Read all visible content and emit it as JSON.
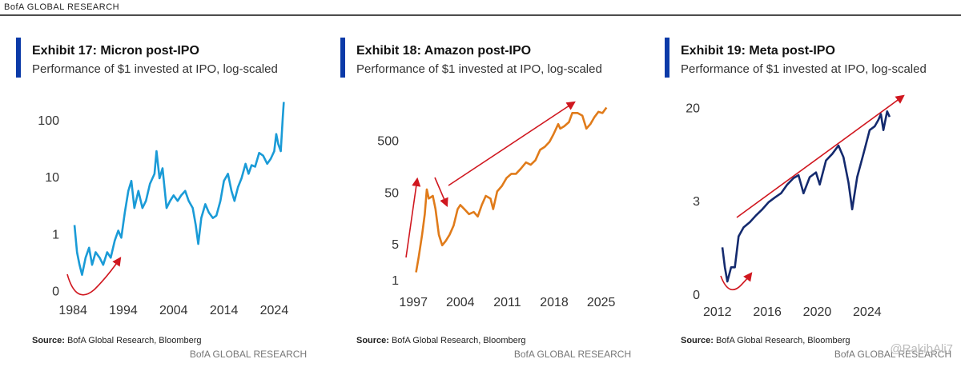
{
  "header": "BofA GLOBAL RESEARCH",
  "chart_data": [
    {
      "type": "line",
      "title": "Exhibit 17: Micron post-IPO",
      "subtitle": "Performance of $1 invested at IPO, log-scaled",
      "source_label": "Source:",
      "source": "BofA Global Research, Bloomberg",
      "footer": "BofA GLOBAL RESEARCH",
      "color": "#1a9bd7",
      "yscale": "log",
      "grid": false,
      "xlim": [
        1983.5,
        2026
      ],
      "xticks": [
        1984,
        1994,
        2004,
        2014,
        2024
      ],
      "ylim": [
        0.08,
        300
      ],
      "yticks": [
        {
          "value": 0.1,
          "label": "0"
        },
        1,
        10,
        100
      ],
      "x": [
        1984.3,
        1984.8,
        1985.3,
        1985.8,
        1986.5,
        1987.2,
        1987.8,
        1988.5,
        1989.3,
        1990,
        1990.8,
        1991.5,
        1992.3,
        1993,
        1993.6,
        1994.3,
        1995,
        1995.6,
        1996.2,
        1997,
        1997.8,
        1998.5,
        1999.3,
        2000.2,
        2000.6,
        2001.2,
        2001.8,
        2002.6,
        2003.3,
        2004,
        2004.8,
        2005.5,
        2006.3,
        2007,
        2007.8,
        2008.4,
        2008.9,
        2009.5,
        2010.3,
        2011,
        2011.8,
        2012.5,
        2013.3,
        2014,
        2014.8,
        2015.5,
        2016.1,
        2016.8,
        2017.5,
        2018.3,
        2018.9,
        2019.5,
        2020.2,
        2021,
        2021.8,
        2022.6,
        2023.3,
        2024,
        2024.4,
        2024.8,
        2025.3,
        2025.7,
        2025.9
      ],
      "values": [
        1.5,
        0.5,
        0.3,
        0.2,
        0.4,
        0.6,
        0.3,
        0.5,
        0.4,
        0.3,
        0.5,
        0.4,
        0.8,
        1.2,
        0.9,
        2.5,
        6,
        9,
        3,
        6,
        3,
        4,
        8,
        12,
        30,
        10,
        15,
        3,
        4,
        5,
        4,
        5,
        6,
        4,
        3,
        1.5,
        0.7,
        2,
        3.5,
        2.5,
        2,
        2.2,
        4,
        9,
        12,
        6,
        4,
        7,
        10,
        18,
        12,
        17,
        16,
        28,
        25,
        18,
        22,
        30,
        60,
        40,
        30,
        120,
        220
      ]
    },
    {
      "type": "line",
      "title": "Exhibit 18: Amazon post-IPO",
      "subtitle": "Performance of $1 invested at IPO, log-scaled",
      "source_label": "Source:",
      "source": "BofA Global Research, Bloomberg",
      "footer": "BofA GLOBAL RESEARCH",
      "color": "#e07b1a",
      "yscale": "log",
      "grid": false,
      "xlim": [
        1996.5,
        2026
      ],
      "xticks": [
        1997,
        2004,
        2011,
        2018,
        2025
      ],
      "ylim": [
        0.7,
        3000
      ],
      "yticks": [
        1,
        5,
        50,
        500
      ],
      "x": [
        1997.4,
        1997.8,
        1998.3,
        1998.7,
        1999.0,
        1999.3,
        1999.9,
        2000.3,
        2000.8,
        2001.3,
        2001.8,
        2002.4,
        2003,
        2003.6,
        2004,
        2004.6,
        2005.3,
        2006,
        2006.6,
        2007.2,
        2007.8,
        2008.5,
        2008.9,
        2009.5,
        2010.2,
        2010.9,
        2011.6,
        2012.3,
        2013,
        2013.8,
        2014.5,
        2015.2,
        2015.9,
        2016.6,
        2017.3,
        2017.9,
        2018.6,
        2018.9,
        2019.5,
        2020.2,
        2020.7,
        2021.5,
        2022.2,
        2022.8,
        2023.4,
        2024,
        2024.6,
        2025.2,
        2025.8
      ],
      "values": [
        1.5,
        3,
        8,
        20,
        60,
        40,
        45,
        25,
        8,
        5,
        6,
        8,
        12,
        25,
        30,
        25,
        20,
        22,
        18,
        30,
        45,
        40,
        25,
        55,
        70,
        100,
        120,
        120,
        150,
        200,
        180,
        220,
        350,
        400,
        500,
        700,
        1100,
        900,
        1000,
        1200,
        1800,
        1800,
        1600,
        900,
        1100,
        1500,
        1900,
        1800,
        2300
      ]
    },
    {
      "type": "line",
      "title": "Exhibit 19: Meta post-IPO",
      "subtitle": "Performance of $1 invested at IPO, log-scaled",
      "source_label": "Source:",
      "source": "BofA Global Research, Bloomberg",
      "footer": "BofA GLOBAL RESEARCH",
      "watermark": "@RakibAli7",
      "color": "#142a6e",
      "yscale": "log",
      "grid": false,
      "xlim": [
        2011.5,
        2026
      ],
      "xticks": [
        2012,
        2016,
        2020,
        2024
      ],
      "ylim": [
        0.42,
        26
      ],
      "yticks": [
        {
          "value": 0.45,
          "label": "0"
        },
        3,
        20
      ],
      "x": [
        2012.4,
        2012.6,
        2012.8,
        2013.1,
        2013.4,
        2013.7,
        2014.1,
        2014.6,
        2015.1,
        2015.6,
        2016.1,
        2016.6,
        2017.1,
        2017.6,
        2018.1,
        2018.5,
        2018.9,
        2019.4,
        2019.9,
        2020.2,
        2020.7,
        2021.2,
        2021.7,
        2022.1,
        2022.5,
        2022.8,
        2023.2,
        2023.7,
        2024.2,
        2024.6,
        2024.9,
        2025.1,
        2025.3,
        2025.6,
        2025.8
      ],
      "values": [
        1.2,
        0.8,
        0.6,
        0.8,
        0.8,
        1.5,
        1.8,
        2.0,
        2.3,
        2.6,
        3.0,
        3.3,
        3.6,
        4.3,
        4.9,
        5.2,
        3.6,
        5.0,
        5.5,
        4.3,
        7.0,
        8.0,
        9.5,
        7.5,
        4.5,
        2.6,
        5.0,
        8.0,
        13,
        14,
        16,
        18,
        13,
        19,
        17
      ]
    }
  ]
}
